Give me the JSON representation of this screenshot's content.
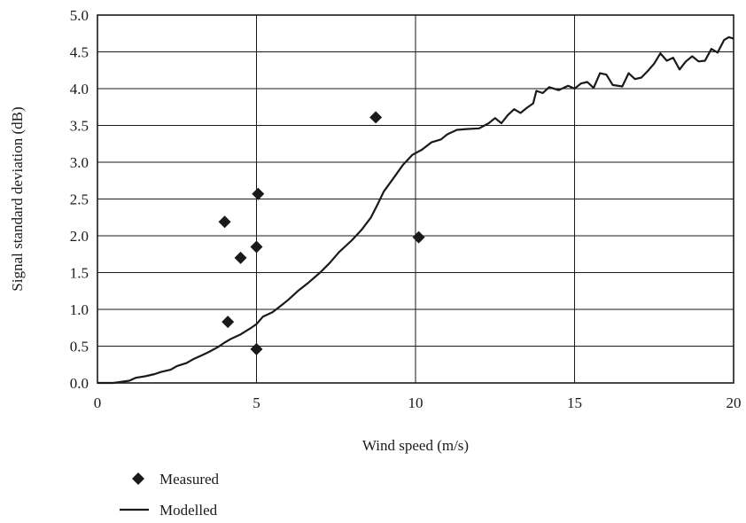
{
  "chart_data": {
    "type": "scatter",
    "title": "",
    "xlabel": "Wind speed (m/s)",
    "ylabel": "Signal standard deviation (dB)",
    "xlim": [
      0,
      20
    ],
    "ylim": [
      0.0,
      5.0
    ],
    "x_ticks": [
      "0",
      "5",
      "10",
      "15",
      "20"
    ],
    "y_ticks": [
      "0.0",
      "0.5",
      "1.0",
      "1.5",
      "2.0",
      "2.5",
      "3.0",
      "3.5",
      "4.0",
      "4.5",
      "5.0"
    ],
    "grid": "on",
    "legend_position": "bottom-left",
    "series": [
      {
        "name": "Measured",
        "style": "diamond-markers",
        "color": "#1a1a1a",
        "points": [
          {
            "x": 4.0,
            "y": 2.19
          },
          {
            "x": 4.1,
            "y": 0.83
          },
          {
            "x": 4.5,
            "y": 1.7
          },
          {
            "x": 5.0,
            "y": 1.85
          },
          {
            "x": 5.05,
            "y": 2.57
          },
          {
            "x": 5.0,
            "y": 0.46
          },
          {
            "x": 8.75,
            "y": 3.61
          },
          {
            "x": 10.1,
            "y": 1.98
          }
        ]
      },
      {
        "name": "Modelled",
        "style": "solid-line",
        "color": "#1a1a1a",
        "points": [
          {
            "x": 0.0,
            "y": 0.0
          },
          {
            "x": 0.5,
            "y": 0.0
          },
          {
            "x": 1.0,
            "y": 0.03
          },
          {
            "x": 1.2,
            "y": 0.07
          },
          {
            "x": 1.5,
            "y": 0.09
          },
          {
            "x": 1.8,
            "y": 0.12
          },
          {
            "x": 2.0,
            "y": 0.15
          },
          {
            "x": 2.3,
            "y": 0.18
          },
          {
            "x": 2.5,
            "y": 0.23
          },
          {
            "x": 2.8,
            "y": 0.27
          },
          {
            "x": 3.0,
            "y": 0.32
          },
          {
            "x": 3.3,
            "y": 0.38
          },
          {
            "x": 3.5,
            "y": 0.42
          },
          {
            "x": 3.8,
            "y": 0.49
          },
          {
            "x": 4.0,
            "y": 0.55
          },
          {
            "x": 4.2,
            "y": 0.6
          },
          {
            "x": 4.5,
            "y": 0.66
          },
          {
            "x": 4.8,
            "y": 0.74
          },
          {
            "x": 5.0,
            "y": 0.8
          },
          {
            "x": 5.2,
            "y": 0.9
          },
          {
            "x": 5.5,
            "y": 0.96
          },
          {
            "x": 5.8,
            "y": 1.06
          },
          {
            "x": 6.0,
            "y": 1.13
          },
          {
            "x": 6.3,
            "y": 1.25
          },
          {
            "x": 6.6,
            "y": 1.35
          },
          {
            "x": 7.0,
            "y": 1.5
          },
          {
            "x": 7.3,
            "y": 1.63
          },
          {
            "x": 7.6,
            "y": 1.78
          },
          {
            "x": 8.0,
            "y": 1.94
          },
          {
            "x": 8.3,
            "y": 2.08
          },
          {
            "x": 8.6,
            "y": 2.25
          },
          {
            "x": 8.8,
            "y": 2.42
          },
          {
            "x": 9.0,
            "y": 2.6
          },
          {
            "x": 9.3,
            "y": 2.78
          },
          {
            "x": 9.6,
            "y": 2.96
          },
          {
            "x": 9.9,
            "y": 3.1
          },
          {
            "x": 10.2,
            "y": 3.17
          },
          {
            "x": 10.5,
            "y": 3.27
          },
          {
            "x": 10.8,
            "y": 3.31
          },
          {
            "x": 11.0,
            "y": 3.38
          },
          {
            "x": 11.3,
            "y": 3.44
          },
          {
            "x": 11.6,
            "y": 3.45
          },
          {
            "x": 12.0,
            "y": 3.46
          },
          {
            "x": 12.3,
            "y": 3.53
          },
          {
            "x": 12.5,
            "y": 3.6
          },
          {
            "x": 12.7,
            "y": 3.53
          },
          {
            "x": 12.9,
            "y": 3.64
          },
          {
            "x": 13.1,
            "y": 3.72
          },
          {
            "x": 13.3,
            "y": 3.67
          },
          {
            "x": 13.5,
            "y": 3.74
          },
          {
            "x": 13.7,
            "y": 3.8
          },
          {
            "x": 13.8,
            "y": 3.97
          },
          {
            "x": 14.0,
            "y": 3.94
          },
          {
            "x": 14.2,
            "y": 4.02
          },
          {
            "x": 14.5,
            "y": 3.98
          },
          {
            "x": 14.8,
            "y": 4.04
          },
          {
            "x": 15.0,
            "y": 4.0
          },
          {
            "x": 15.2,
            "y": 4.07
          },
          {
            "x": 15.4,
            "y": 4.09
          },
          {
            "x": 15.6,
            "y": 4.01
          },
          {
            "x": 15.8,
            "y": 4.21
          },
          {
            "x": 16.0,
            "y": 4.19
          },
          {
            "x": 16.2,
            "y": 4.05
          },
          {
            "x": 16.5,
            "y": 4.03
          },
          {
            "x": 16.7,
            "y": 4.21
          },
          {
            "x": 16.9,
            "y": 4.13
          },
          {
            "x": 17.1,
            "y": 4.15
          },
          {
            "x": 17.3,
            "y": 4.24
          },
          {
            "x": 17.5,
            "y": 4.34
          },
          {
            "x": 17.7,
            "y": 4.48
          },
          {
            "x": 17.9,
            "y": 4.38
          },
          {
            "x": 18.1,
            "y": 4.42
          },
          {
            "x": 18.3,
            "y": 4.26
          },
          {
            "x": 18.5,
            "y": 4.37
          },
          {
            "x": 18.7,
            "y": 4.44
          },
          {
            "x": 18.9,
            "y": 4.37
          },
          {
            "x": 19.1,
            "y": 4.38
          },
          {
            "x": 19.3,
            "y": 4.54
          },
          {
            "x": 19.5,
            "y": 4.49
          },
          {
            "x": 19.7,
            "y": 4.66
          },
          {
            "x": 19.85,
            "y": 4.7
          },
          {
            "x": 20.0,
            "y": 4.68
          }
        ]
      }
    ]
  }
}
